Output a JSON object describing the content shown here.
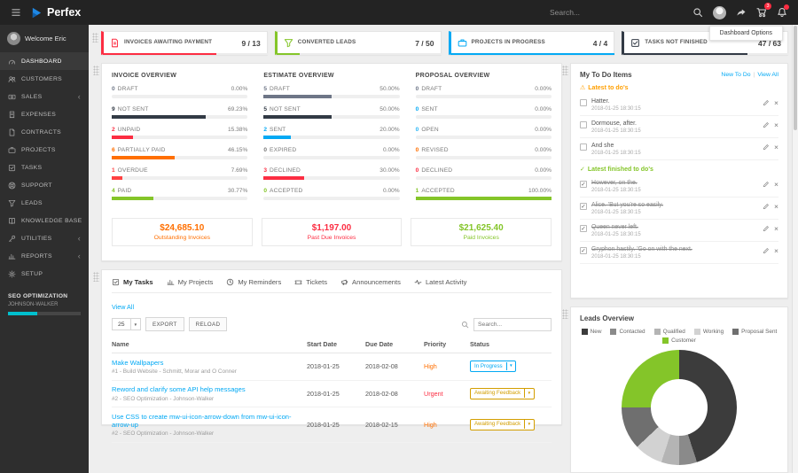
{
  "topbar": {
    "brand": "Perfex",
    "search_placeholder": "Search...",
    "cart_badge": "3"
  },
  "dashboard_options_label": "Dashboard Options",
  "sidebar": {
    "welcome": "Welcome Eric",
    "items": [
      {
        "label": "DASHBOARD",
        "icon": "dashboard-icon",
        "active": true,
        "expandable": false
      },
      {
        "label": "CUSTOMERS",
        "icon": "customers-icon",
        "active": false,
        "expandable": false
      },
      {
        "label": "SALES",
        "icon": "sales-icon",
        "active": false,
        "expandable": true
      },
      {
        "label": "EXPENSES",
        "icon": "expenses-icon",
        "active": false,
        "expandable": false
      },
      {
        "label": "CONTRACTS",
        "icon": "contracts-icon",
        "active": false,
        "expandable": false
      },
      {
        "label": "PROJECTS",
        "icon": "projects-icon",
        "active": false,
        "expandable": false
      },
      {
        "label": "TASKS",
        "icon": "tasks-icon",
        "active": false,
        "expandable": false
      },
      {
        "label": "SUPPORT",
        "icon": "support-icon",
        "active": false,
        "expandable": false
      },
      {
        "label": "LEADS",
        "icon": "leads-icon",
        "active": false,
        "expandable": false
      },
      {
        "label": "KNOWLEDGE BASE",
        "icon": "knowledge-base-icon",
        "active": false,
        "expandable": false
      },
      {
        "label": "UTILITIES",
        "icon": "utilities-icon",
        "active": false,
        "expandable": true
      },
      {
        "label": "REPORTS",
        "icon": "reports-icon",
        "active": false,
        "expandable": true
      },
      {
        "label": "SETUP",
        "icon": "setup-icon",
        "active": false,
        "expandable": false
      }
    ],
    "project_progress": {
      "title": "SEO OPTIMIZATION",
      "subtitle": "JOHNSON-WALKER",
      "percent": 40,
      "color": "#00c0ce"
    }
  },
  "stat_cards": [
    {
      "label": "INVOICES AWAITING PAYMENT",
      "value": "9 / 13",
      "color": "#fc2d42",
      "percent": 69,
      "icon": "invoices-awaiting-icon"
    },
    {
      "label": "CONVERTED LEADS",
      "value": "7 / 50",
      "color": "#84c529",
      "percent": 14,
      "icon": "converted-leads-icon"
    },
    {
      "label": "PROJECTS IN PROGRESS",
      "value": "4 / 4",
      "color": "#03a9f4",
      "percent": 100,
      "icon": "projects-in-progress-icon"
    },
    {
      "label": "TASKS NOT FINISHED",
      "value": "47 / 63",
      "color": "#323a45",
      "percent": 75,
      "icon": "tasks-not-finished-icon"
    }
  ],
  "overviews": [
    {
      "title": "INVOICE OVERVIEW",
      "rows": [
        {
          "count": "0",
          "label": "DRAFT",
          "percent_label": "0.00%",
          "percent": 0,
          "color": "#6e7687"
        },
        {
          "count": "9",
          "label": "NOT SENT",
          "percent_label": "69.23%",
          "percent": 69.23,
          "color": "#323a45"
        },
        {
          "count": "2",
          "label": "UNPAID",
          "percent_label": "15.38%",
          "percent": 15.38,
          "color": "#fc2d42"
        },
        {
          "count": "6",
          "label": "PARTIALLY PAID",
          "percent_label": "46.15%",
          "percent": 46.15,
          "color": "#ff6f00"
        },
        {
          "count": "1",
          "label": "OVERDUE",
          "percent_label": "7.69%",
          "percent": 7.69,
          "color": "#ff4141"
        },
        {
          "count": "4",
          "label": "PAID",
          "percent_label": "30.77%",
          "percent": 30.77,
          "color": "#84c529"
        }
      ]
    },
    {
      "title": "ESTIMATE OVERVIEW",
      "rows": [
        {
          "count": "5",
          "label": "DRAFT",
          "percent_label": "50.00%",
          "percent": 50,
          "color": "#6e7687"
        },
        {
          "count": "5",
          "label": "NOT SENT",
          "percent_label": "50.00%",
          "percent": 50,
          "color": "#323a45"
        },
        {
          "count": "2",
          "label": "SENT",
          "percent_label": "20.00%",
          "percent": 20,
          "color": "#03a9f4"
        },
        {
          "count": "0",
          "label": "EXPIRED",
          "percent_label": "0.00%",
          "percent": 0,
          "color": "#777777"
        },
        {
          "count": "3",
          "label": "DECLINED",
          "percent_label": "30.00%",
          "percent": 30,
          "color": "#fc2d42"
        },
        {
          "count": "0",
          "label": "ACCEPTED",
          "percent_label": "0.00%",
          "percent": 0,
          "color": "#84c529"
        }
      ]
    },
    {
      "title": "PROPOSAL OVERVIEW",
      "rows": [
        {
          "count": "0",
          "label": "DRAFT",
          "percent_label": "0.00%",
          "percent": 0,
          "color": "#6e7687"
        },
        {
          "count": "0",
          "label": "SENT",
          "percent_label": "0.00%",
          "percent": 0,
          "color": "#03a9f4"
        },
        {
          "count": "0",
          "label": "OPEN",
          "percent_label": "0.00%",
          "percent": 0,
          "color": "#29b6f6"
        },
        {
          "count": "0",
          "label": "REVISED",
          "percent_label": "0.00%",
          "percent": 0,
          "color": "#ff6f00"
        },
        {
          "count": "0",
          "label": "DECLINED",
          "percent_label": "0.00%",
          "percent": 0,
          "color": "#fc2d42"
        },
        {
          "count": "1",
          "label": "ACCEPTED",
          "percent_label": "100.00%",
          "percent": 100,
          "color": "#84c529"
        }
      ]
    }
  ],
  "invoice_totals": [
    {
      "amount": "$24,685.10",
      "label": "Outstanding Invoices",
      "color": "#ff6f00"
    },
    {
      "amount": "$1,197.00",
      "label": "Past Due Invoices",
      "color": "#fc2d42"
    },
    {
      "amount": "$21,625.40",
      "label": "Paid Invoices",
      "color": "#84c529"
    }
  ],
  "tasks_panel": {
    "tabs": [
      {
        "label": "My Tasks",
        "icon": "my-tasks-icon",
        "active": true
      },
      {
        "label": "My Projects",
        "icon": "my-projects-icon",
        "active": false
      },
      {
        "label": "My Reminders",
        "icon": "my-reminders-icon",
        "active": false
      },
      {
        "label": "Tickets",
        "icon": "tickets-icon",
        "active": false
      },
      {
        "label": "Announcements",
        "icon": "announcements-icon",
        "active": false
      },
      {
        "label": "Latest Activity",
        "icon": "latest-activity-icon",
        "active": false
      }
    ],
    "view_all_label": "View All",
    "page_size": "25",
    "export_label": "EXPORT",
    "reload_label": "RELOAD",
    "search_placeholder": "Search...",
    "headers": [
      "Name",
      "Start Date",
      "Due Date",
      "Priority",
      "Status"
    ],
    "rows": [
      {
        "name": "Make Wallpapers",
        "subtitle": "#1 - Build Website - Schmitt, Morar and O Conner",
        "start_date": "2018-01-25",
        "due_date": "2018-02-08",
        "priority": "High",
        "priority_color": "#ff6f00",
        "status": "In Progress",
        "status_color": "#03a9f4"
      },
      {
        "name": "Reword and clarify some API help messages",
        "subtitle": "#2 - SEO Optimization - Johnson-Walker",
        "start_date": "2018-01-25",
        "due_date": "2018-02-08",
        "priority": "Urgent",
        "priority_color": "#fc2d42",
        "status": "Awaiting Feedback",
        "status_color": "#d39e00"
      },
      {
        "name": "Use CSS to create mw-ui-icon-arrow-down from mw-ui-icon-arrow-up",
        "subtitle": "#2 - SEO Optimization - Johnson-Walker",
        "start_date": "2018-01-25",
        "due_date": "2018-02-15",
        "priority": "High",
        "priority_color": "#ff6f00",
        "status": "Awaiting Feedback",
        "status_color": "#d39e00"
      }
    ]
  },
  "todo_panel": {
    "title": "My To Do Items",
    "new_todo_label": "New To Do",
    "view_all_label": "View All",
    "sections": [
      {
        "label": "Latest to do's",
        "type": "pending",
        "color": "#ff9f00",
        "items": [
          {
            "text": "Hatter.",
            "date": "2018-01-25 18:30:15"
          },
          {
            "text": "Dormouse, after.",
            "date": "2018-01-25 18:30:15"
          },
          {
            "text": "And she",
            "date": "2018-01-25 18:30:15"
          }
        ]
      },
      {
        "label": "Latest finished to do's",
        "type": "finished",
        "color": "#84c529",
        "items": [
          {
            "text": "However, on the.",
            "date": "2018-01-25 18:30:15"
          },
          {
            "text": "Alice. 'But you're so easily.",
            "date": "2018-01-25 18:30:15"
          },
          {
            "text": "Queen never left.",
            "date": "2018-01-25 18:30:15"
          },
          {
            "text": "Gryphon hastily. 'Go on with the next.",
            "date": "2018-01-25 18:30:15"
          }
        ]
      }
    ]
  },
  "leads_panel": {
    "title": "Leads Overview",
    "legend": [
      {
        "label": "New",
        "color": "#3c3c3c"
      },
      {
        "label": "Contacted",
        "color": "#8a8a8a"
      },
      {
        "label": "Qualified",
        "color": "#b4b4b4"
      },
      {
        "label": "Working",
        "color": "#d2d2d2"
      },
      {
        "label": "Proposal Sent",
        "color": "#6f6f6f"
      },
      {
        "label": "Customer",
        "color": "#84c529"
      }
    ]
  },
  "chart_data": {
    "type": "pie",
    "title": "Leads Overview",
    "donut": true,
    "legend_position": "top",
    "categories": [
      "New",
      "Contacted",
      "Qualified",
      "Working",
      "Proposal Sent",
      "Customer"
    ],
    "values": [
      45,
      5,
      5,
      8,
      12,
      25
    ],
    "colors": [
      "#3c3c3c",
      "#8a8a8a",
      "#b4b4b4",
      "#d2d2d2",
      "#6f6f6f",
      "#84c529"
    ]
  }
}
